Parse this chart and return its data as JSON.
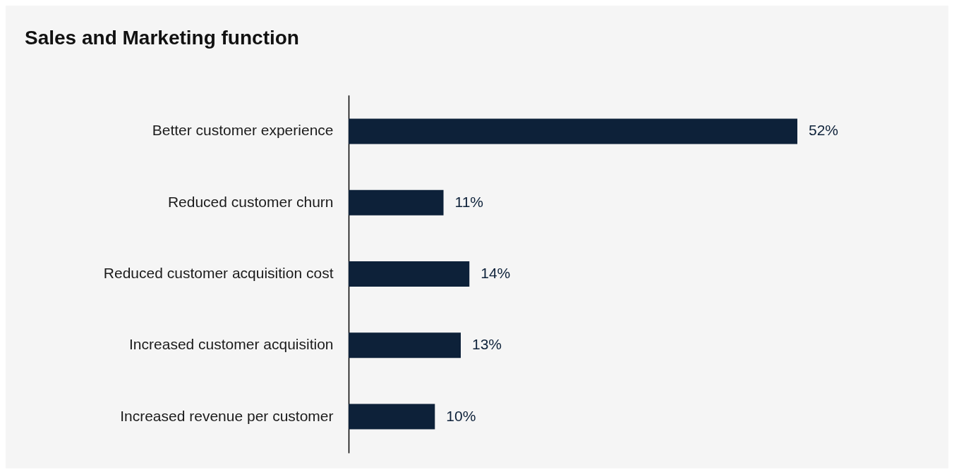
{
  "chart_data": {
    "type": "bar",
    "orientation": "horizontal",
    "title": "Sales and Marketing function",
    "categories": [
      "Better customer experience",
      "Reduced customer churn",
      "Reduced customer acquisition cost",
      "Increased customer acquisition",
      "Increased revenue per customer"
    ],
    "values": [
      52,
      11,
      14,
      13,
      10
    ],
    "color": "#0d2139",
    "value_labels": [
      "52%",
      "11%",
      "14%",
      "13%",
      "10%"
    ],
    "tick_labels": "y"
  }
}
